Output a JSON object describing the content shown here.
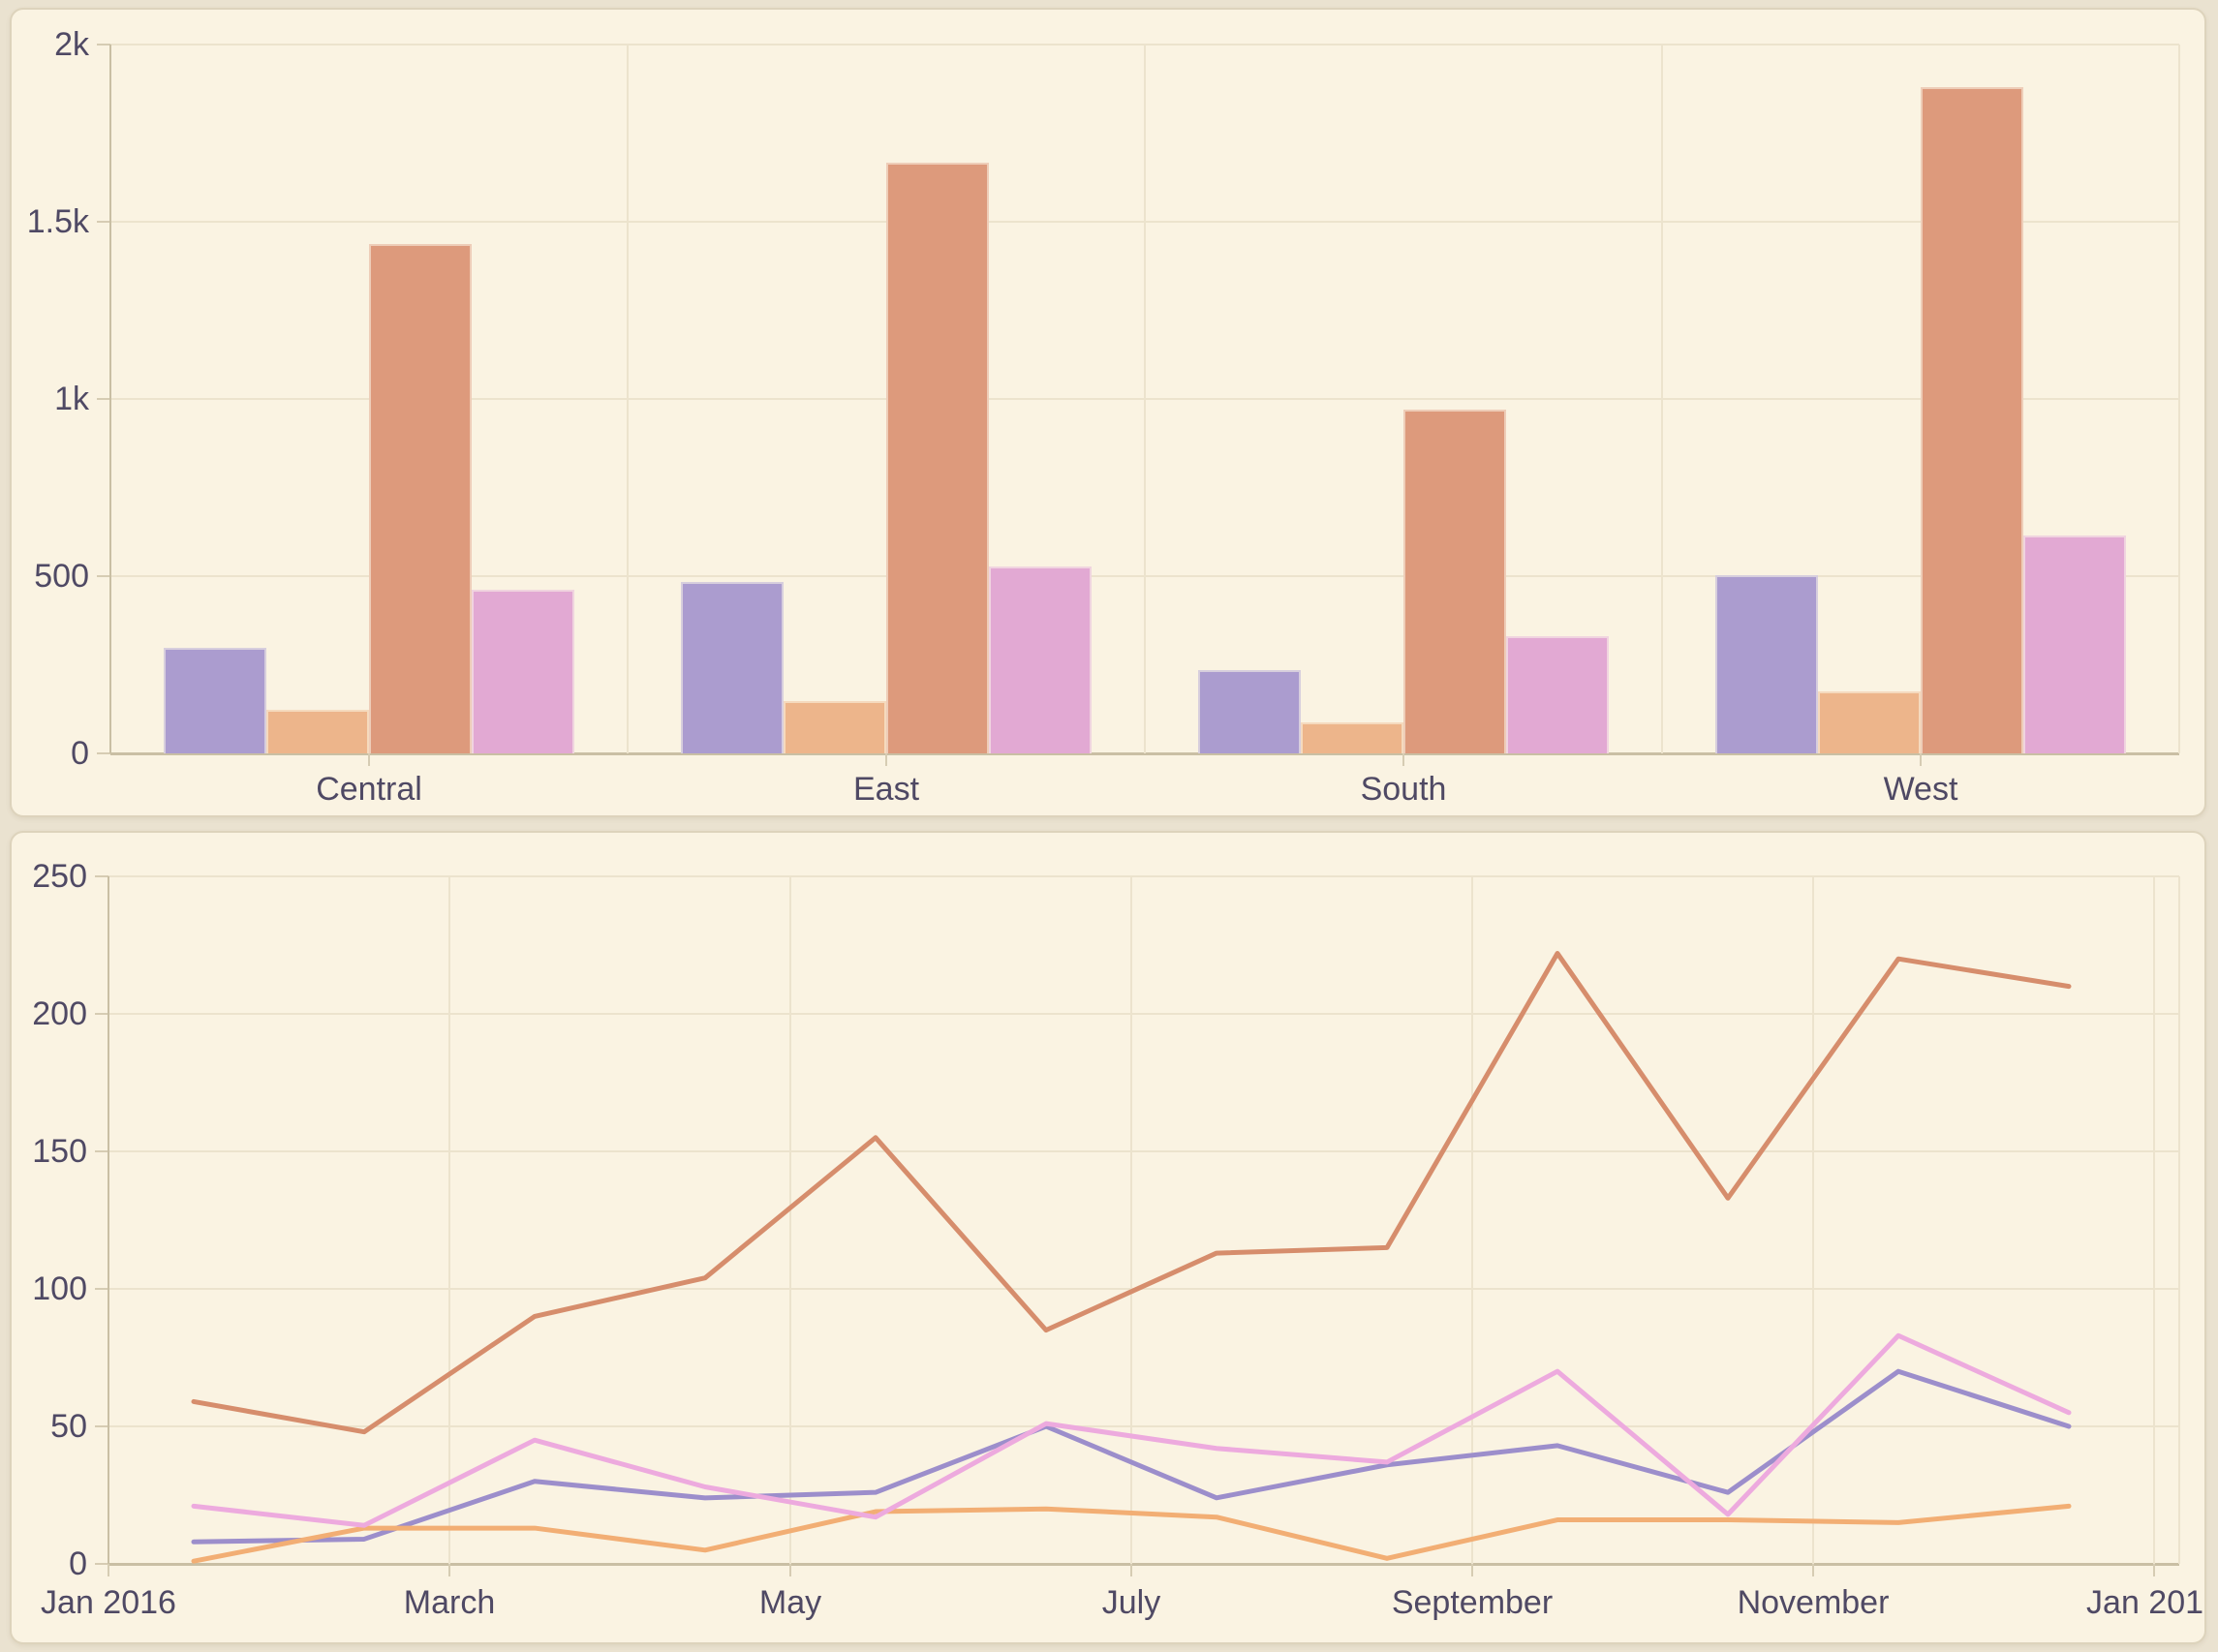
{
  "page": {
    "bg": "#eae2d0",
    "panel_bg": "#faf3e2",
    "panel_border": "#ddd3bc",
    "grid_color": "#ece3cd",
    "tick_color": "#d6ccb3",
    "axis_color": "#c9bfa4",
    "label_color": "#4f4964"
  },
  "chart_data": [
    {
      "type": "bar",
      "title": "",
      "categories": [
        "Central",
        "East",
        "South",
        "West"
      ],
      "series": [
        {
          "name": "series-purple",
          "color": "#ab9ccf",
          "values": [
            298,
            484,
            236,
            504
          ]
        },
        {
          "name": "series-orange",
          "color": "#edb58b",
          "values": [
            122,
            147,
            87,
            176
          ]
        },
        {
          "name": "series-terracotta",
          "color": "#dd9a7c",
          "values": [
            1436,
            1668,
            969,
            1881
          ]
        },
        {
          "name": "series-pink",
          "color": "#e2a9d3",
          "values": [
            463,
            526,
            331,
            614
          ]
        }
      ],
      "ylim": [
        0,
        2000
      ],
      "yticks": [
        {
          "v": 0,
          "label": "0"
        },
        {
          "v": 500,
          "label": "500"
        },
        {
          "v": 1000,
          "label": "1k"
        },
        {
          "v": 1500,
          "label": "1.5k"
        },
        {
          "v": 2000,
          "label": "2k"
        }
      ],
      "grid": true,
      "legend": "none"
    },
    {
      "type": "line",
      "title": "",
      "x": [
        "Jan",
        "Feb",
        "Mar",
        "Apr",
        "May",
        "Jun",
        "Jul",
        "Aug",
        "Sep",
        "Oct",
        "Nov",
        "Dec"
      ],
      "x_tick_labels": [
        "Jan 2016",
        "March",
        "May",
        "July",
        "September",
        "November",
        "Jan 2017"
      ],
      "series": [
        {
          "name": "series-purple",
          "color": "#9c8ecb",
          "values": [
            8,
            9,
            30,
            24,
            26,
            50,
            24,
            36,
            43,
            26,
            70,
            50
          ]
        },
        {
          "name": "series-orange",
          "color": "#f2ae74",
          "values": [
            1,
            13,
            13,
            5,
            19,
            20,
            17,
            2,
            16,
            16,
            15,
            21
          ]
        },
        {
          "name": "series-terracotta",
          "color": "#d68d6c",
          "values": [
            59,
            48,
            90,
            104,
            155,
            85,
            113,
            115,
            222,
            133,
            220,
            210
          ]
        },
        {
          "name": "series-pink",
          "color": "#edaade",
          "values": [
            21,
            14,
            45,
            28,
            17,
            51,
            42,
            37,
            70,
            18,
            83,
            55
          ]
        }
      ],
      "ylim": [
        0,
        250
      ],
      "yticks": [
        {
          "v": 0,
          "label": "0"
        },
        {
          "v": 50,
          "label": "50"
        },
        {
          "v": 100,
          "label": "100"
        },
        {
          "v": 150,
          "label": "150"
        },
        {
          "v": 200,
          "label": "200"
        },
        {
          "v": 250,
          "label": "250"
        }
      ],
      "grid": true,
      "legend": "none"
    }
  ]
}
